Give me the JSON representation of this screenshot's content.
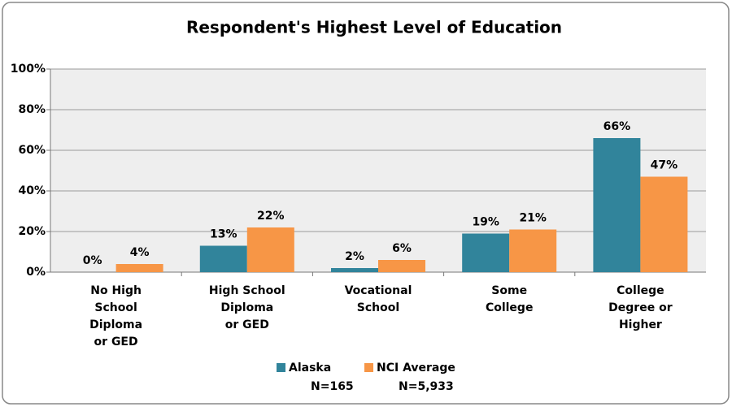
{
  "chart_data": {
    "type": "bar",
    "title": "Respondent's Highest Level of Education",
    "categories": [
      [
        "No High",
        "School",
        "Diploma",
        "or GED"
      ],
      [
        "High School",
        "Diploma",
        "or GED"
      ],
      [
        "Vocational",
        "School"
      ],
      [
        "Some",
        "College"
      ],
      [
        "College",
        "Degree or",
        "Higher"
      ]
    ],
    "series": [
      {
        "name": "Alaska",
        "n_label": "N=165",
        "color": "#31849b",
        "values": [
          0,
          13,
          2,
          19,
          66
        ],
        "value_labels": [
          "0%",
          "13%",
          "2%",
          "19%",
          "66%"
        ]
      },
      {
        "name": "NCI Average",
        "n_label": "N=5,933",
        "color": "#f79646",
        "values": [
          4,
          22,
          6,
          21,
          47
        ],
        "value_labels": [
          "4%",
          "22%",
          "6%",
          "21%",
          "47%"
        ]
      }
    ],
    "ylim": [
      0,
      100
    ],
    "yticks": [
      {
        "value": 0,
        "label": "0%"
      },
      {
        "value": 20,
        "label": "20%"
      },
      {
        "value": 40,
        "label": "40%"
      },
      {
        "value": 60,
        "label": "60%"
      },
      {
        "value": 80,
        "label": "80%"
      },
      {
        "value": 100,
        "label": "100%"
      }
    ],
    "grid": true,
    "legend": "bottom"
  }
}
